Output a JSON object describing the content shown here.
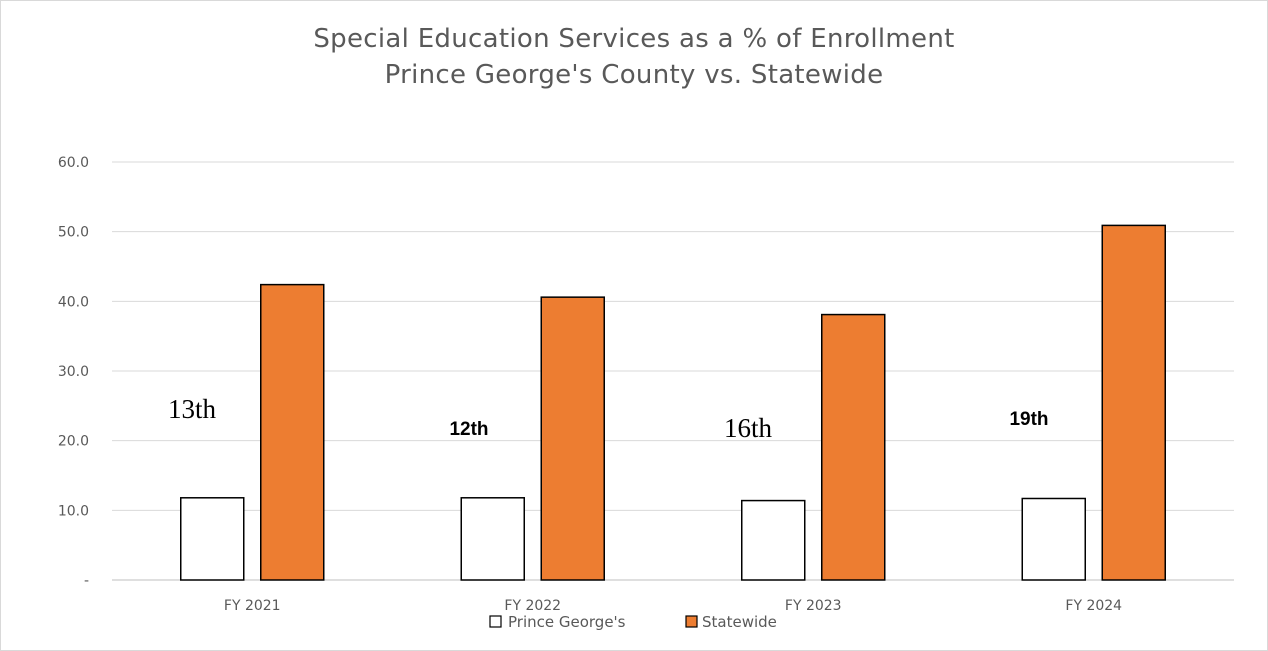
{
  "chart_data": {
    "type": "bar",
    "title": "Special Education Services as a % of Enrollment",
    "subtitle": "Prince George's County vs. Statewide",
    "categories": [
      "FY 2021",
      "FY 2022",
      "FY 2023",
      "FY 2024"
    ],
    "series": [
      {
        "name": "Prince George's",
        "values": [
          11.8,
          11.8,
          11.4,
          11.7
        ],
        "color": "#ffffff",
        "stroke": "#000000"
      },
      {
        "name": "Statewide",
        "values": [
          42.4,
          40.6,
          38.1,
          50.9
        ],
        "color": "#ed7d31",
        "stroke": "#000000"
      }
    ],
    "y_ticks": [
      {
        "value": 0,
        "label": "-"
      },
      {
        "value": 10,
        "label": "10.0"
      },
      {
        "value": 20,
        "label": "20.0"
      },
      {
        "value": 30,
        "label": "30.0"
      },
      {
        "value": 40,
        "label": "40.0"
      },
      {
        "value": 50,
        "label": "50.0"
      },
      {
        "value": 60,
        "label": "60.0"
      }
    ],
    "ylim": [
      0,
      60
    ],
    "grid": true,
    "legend_position": "bottom",
    "annotations": [
      {
        "category": "FY 2021",
        "text": "13th",
        "style": "serif"
      },
      {
        "category": "FY 2022",
        "text": "12th",
        "style": "bold"
      },
      {
        "category": "FY 2023",
        "text": "16th",
        "style": "serif"
      },
      {
        "category": "FY 2024",
        "text": "19th",
        "style": "bold"
      }
    ]
  }
}
